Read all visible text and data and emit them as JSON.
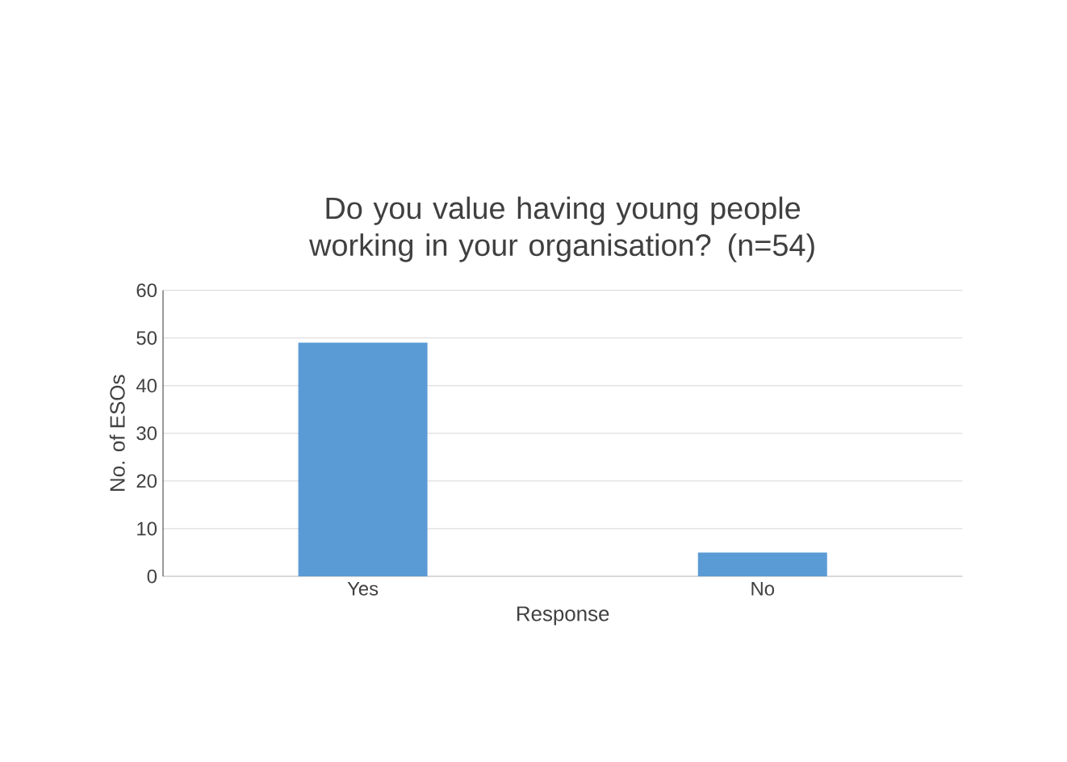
{
  "chart_data": {
    "type": "bar",
    "title": "Do you value having young people working in your organisation? (n=54)",
    "xlabel": "Response",
    "ylabel": "No. of ESOs",
    "categories": [
      "Yes",
      "No"
    ],
    "values": [
      49,
      5
    ],
    "color": "#5b9bd5",
    "ylim": [
      0,
      60
    ],
    "yticks": [
      0,
      10,
      20,
      30,
      40,
      50,
      60
    ],
    "grid": "y"
  }
}
